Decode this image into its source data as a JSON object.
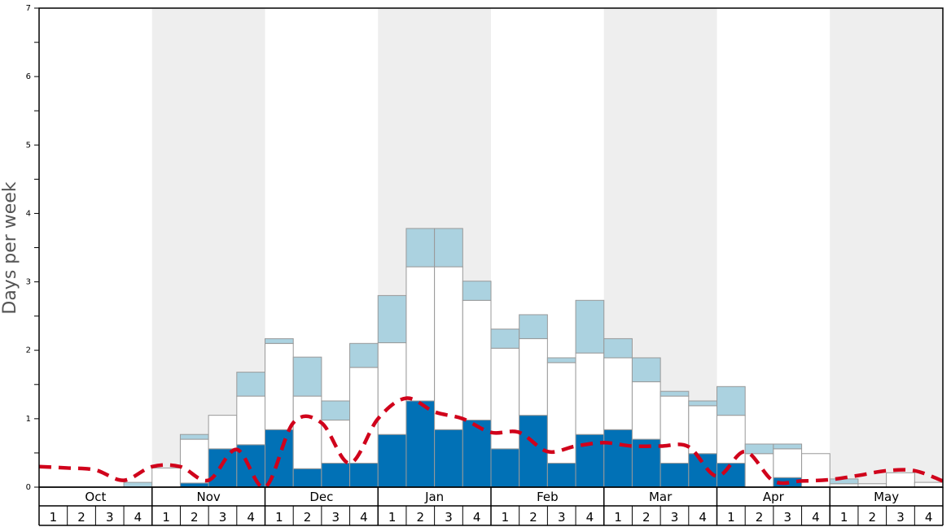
{
  "chart_data": {
    "type": "bar",
    "ylabel": "Days per week",
    "ylim": [
      0,
      7
    ],
    "yticks": [
      "0",
      "1",
      "2",
      "3",
      "4",
      "5",
      "6",
      "7"
    ],
    "months": [
      "Oct",
      "Nov",
      "Dec",
      "Jan",
      "Feb",
      "Mar",
      "Apr",
      "May"
    ],
    "week_labels": [
      "1",
      "2",
      "3",
      "4"
    ],
    "shaded_months": [
      "Nov",
      "Jan",
      "Mar",
      "May"
    ],
    "colors": {
      "dark_blue": "#0171b6",
      "white": "#ffffff",
      "light_blue": "#abd2e0",
      "dashed_line": "#d0021b",
      "shading": "#eeeeee"
    },
    "series": [
      {
        "segment": "dark_blue",
        "values": [
          0,
          0,
          0,
          0,
          0,
          0.06,
          0.56,
          0.62,
          0.84,
          0.27,
          0.35,
          0.35,
          0.77,
          1.26,
          0.84,
          0.98,
          0.56,
          1.05,
          0.35,
          0.77,
          0.84,
          0.7,
          0.35,
          0.49,
          0.35,
          0,
          0.14,
          0,
          0,
          0,
          0,
          0
        ]
      },
      {
        "segment": "white",
        "values": [
          0,
          0,
          0,
          0,
          0.28,
          0.64,
          0.49,
          0.71,
          1.26,
          1.06,
          0.63,
          1.4,
          1.34,
          1.96,
          2.38,
          1.75,
          1.47,
          1.12,
          1.47,
          1.19,
          1.05,
          0.84,
          0.98,
          0.7,
          0.7,
          0.49,
          0.42,
          0.49,
          0.05,
          0.05,
          0.21,
          0.07
        ]
      },
      {
        "segment": "light_blue",
        "values": [
          0,
          0,
          0,
          0.07,
          0,
          0.07,
          0,
          0.35,
          0.07,
          0.57,
          0.28,
          0.35,
          0.69,
          0.56,
          0.56,
          0.28,
          0.28,
          0.35,
          0.07,
          0.77,
          0.28,
          0.35,
          0.07,
          0.07,
          0.42,
          0.14,
          0.07,
          0,
          0.07,
          0,
          0,
          0
        ]
      }
    ],
    "line": {
      "style": "dashed",
      "values": [
        0.3,
        0.28,
        0.25,
        0.1,
        0.3,
        0.3,
        0.1,
        0.55,
        0.0,
        0.94,
        0.94,
        0.35,
        1.0,
        1.3,
        1.1,
        1.0,
        0.8,
        0.8,
        0.52,
        0.6,
        0.65,
        0.6,
        0.6,
        0.59,
        0.16,
        0.52,
        0.09,
        0.09,
        0.11,
        0.17,
        0.24,
        0.24,
        0.09
      ]
    }
  }
}
